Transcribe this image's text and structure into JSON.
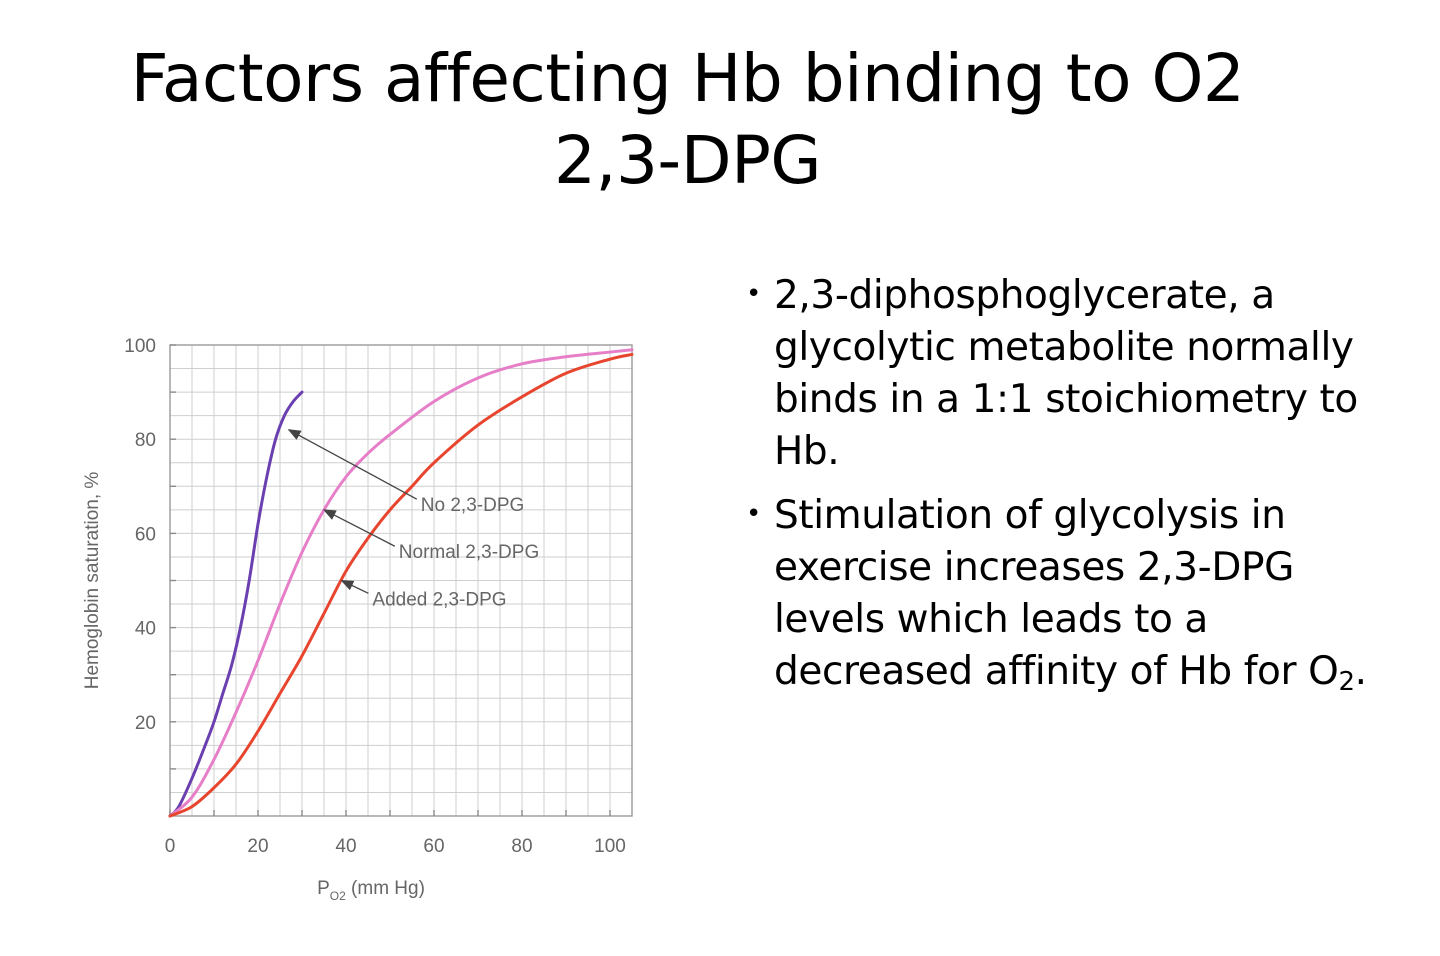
{
  "slide": {
    "title_line1": "Factors affecting Hb binding to O2",
    "title_line2": "2,3-DPG"
  },
  "bullets": [
    {
      "text": "2,3-diphosphoglycerate, a glycolytic metabolite normally binds in a 1:1 stoichiometry to Hb."
    },
    {
      "text_before_sub": "Stimulation of glycolysis in exercise increases 2,3-DPG levels which leads to a decreased affinity of Hb for O",
      "sub": "2",
      "text_after_sub": "."
    }
  ],
  "chart_data": {
    "type": "line",
    "xlabel_main": "P",
    "xlabel_sub": "O2",
    "xlabel_rest": " (mm Hg)",
    "ylabel": "Hemoglobin saturation, %",
    "xlim": [
      0,
      105
    ],
    "ylim": [
      0,
      100
    ],
    "xticks": [
      "0",
      "20",
      "40",
      "60",
      "80",
      "100"
    ],
    "xtick_values": [
      0,
      20,
      40,
      60,
      80,
      100
    ],
    "yticks": [
      "20",
      "40",
      "60",
      "80",
      "100"
    ],
    "ytick_values": [
      20,
      40,
      60,
      80,
      100
    ],
    "grid": true,
    "series": [
      {
        "name": "No 2,3-DPG",
        "color": "#6a3fb0",
        "x": [
          0,
          2,
          5,
          8,
          10,
          12,
          14,
          16,
          18,
          20,
          22,
          24,
          26,
          28,
          30
        ],
        "y": [
          0,
          2,
          8,
          15,
          20,
          26,
          32,
          40,
          50,
          62,
          72,
          80,
          85,
          88,
          90
        ]
      },
      {
        "name": "Normal 2,3-DPG",
        "color": "#e77fc8",
        "x": [
          0,
          5,
          10,
          15,
          20,
          25,
          30,
          35,
          40,
          45,
          50,
          60,
          70,
          80,
          90,
          100,
          105
        ],
        "y": [
          0,
          4,
          12,
          22,
          33,
          45,
          56,
          65,
          72,
          77,
          81,
          88,
          93,
          96,
          97.5,
          98.5,
          99
        ]
      },
      {
        "name": "Added 2,3-DPG",
        "color": "#e8452f",
        "x": [
          0,
          5,
          10,
          15,
          20,
          25,
          30,
          35,
          40,
          45,
          50,
          55,
          60,
          70,
          80,
          90,
          100,
          105
        ],
        "y": [
          0,
          2,
          6,
          11,
          18,
          26,
          34,
          43,
          52,
          59,
          65,
          70,
          75,
          83,
          89,
          94,
          97,
          98
        ]
      }
    ],
    "annotations": [
      {
        "text": "No 2,3-DPG",
        "series": 0,
        "arrow_to": [
          27,
          82
        ],
        "label_at": [
          57,
          66
        ]
      },
      {
        "text": "Normal 2,3-DPG",
        "series": 1,
        "arrow_to": [
          35,
          65
        ],
        "label_at": [
          52,
          56
        ]
      },
      {
        "text": "Added 2,3-DPG",
        "series": 2,
        "arrow_to": [
          39,
          50
        ],
        "label_at": [
          46,
          46
        ]
      }
    ]
  }
}
